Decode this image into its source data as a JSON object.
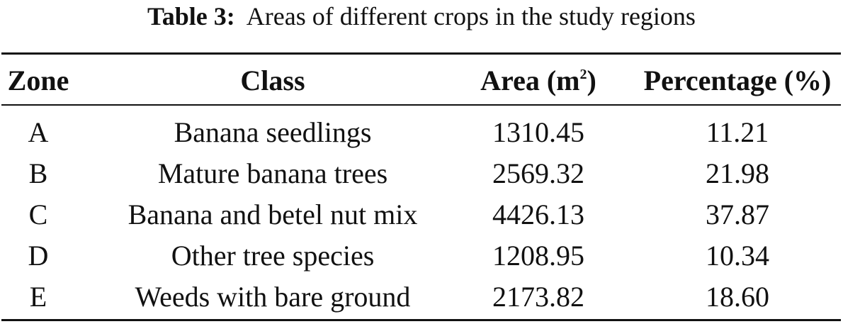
{
  "caption": {
    "label": "Table 3:",
    "text": "Areas of different crops in the study regions"
  },
  "table": {
    "headers": {
      "zone": "Zone",
      "class": "Class",
      "area_prefix": "Area (m",
      "area_sup": "2",
      "area_suffix": ")",
      "percentage": "Percentage (%)"
    },
    "rows": [
      {
        "zone": "A",
        "class": "Banana seedlings",
        "area": "1310.45",
        "percentage": "11.21"
      },
      {
        "zone": "B",
        "class": "Mature banana trees",
        "area": "2569.32",
        "percentage": "21.98"
      },
      {
        "zone": "C",
        "class": "Banana and betel nut mix",
        "area": "4426.13",
        "percentage": "37.87"
      },
      {
        "zone": "D",
        "class": "Other tree species",
        "area": "1208.95",
        "percentage": "10.34"
      },
      {
        "zone": "E",
        "class": "Weeds with bare ground",
        "area": "2173.82",
        "percentage": "18.60"
      }
    ]
  }
}
